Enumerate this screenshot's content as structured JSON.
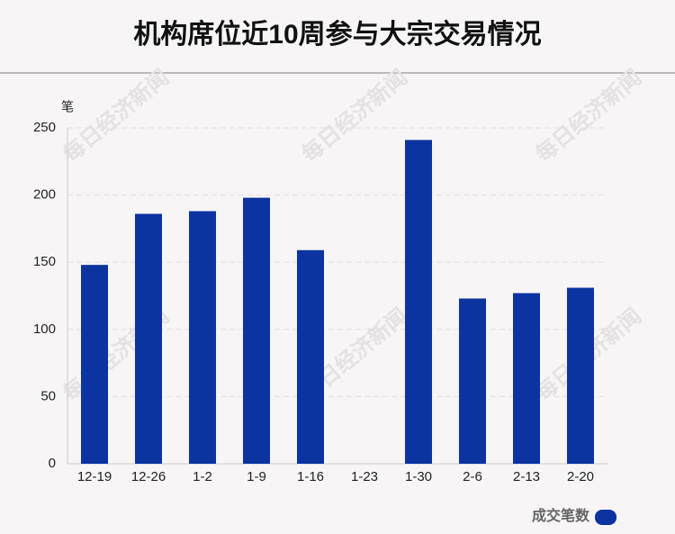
{
  "chart_data": {
    "type": "bar",
    "title": "机构席位近10周参与大宗交易情况",
    "y_label": "笔",
    "watermark": "每日经济新闻",
    "categories": [
      "12-19",
      "12-26",
      "1-2",
      "1-9",
      "1-16",
      "1-23",
      "1-30",
      "2-6",
      "2-13",
      "2-20"
    ],
    "series": [
      {
        "name": "成交笔数",
        "color": "#0b34a0",
        "values": [
          148,
          186,
          188,
          198,
          159,
          0,
          241,
          123,
          127,
          131
        ]
      }
    ],
    "ylim": [
      0,
      250
    ],
    "yticks": [
      0,
      50,
      100,
      150,
      200,
      250
    ],
    "grid": true,
    "legend": "bottom-right"
  }
}
